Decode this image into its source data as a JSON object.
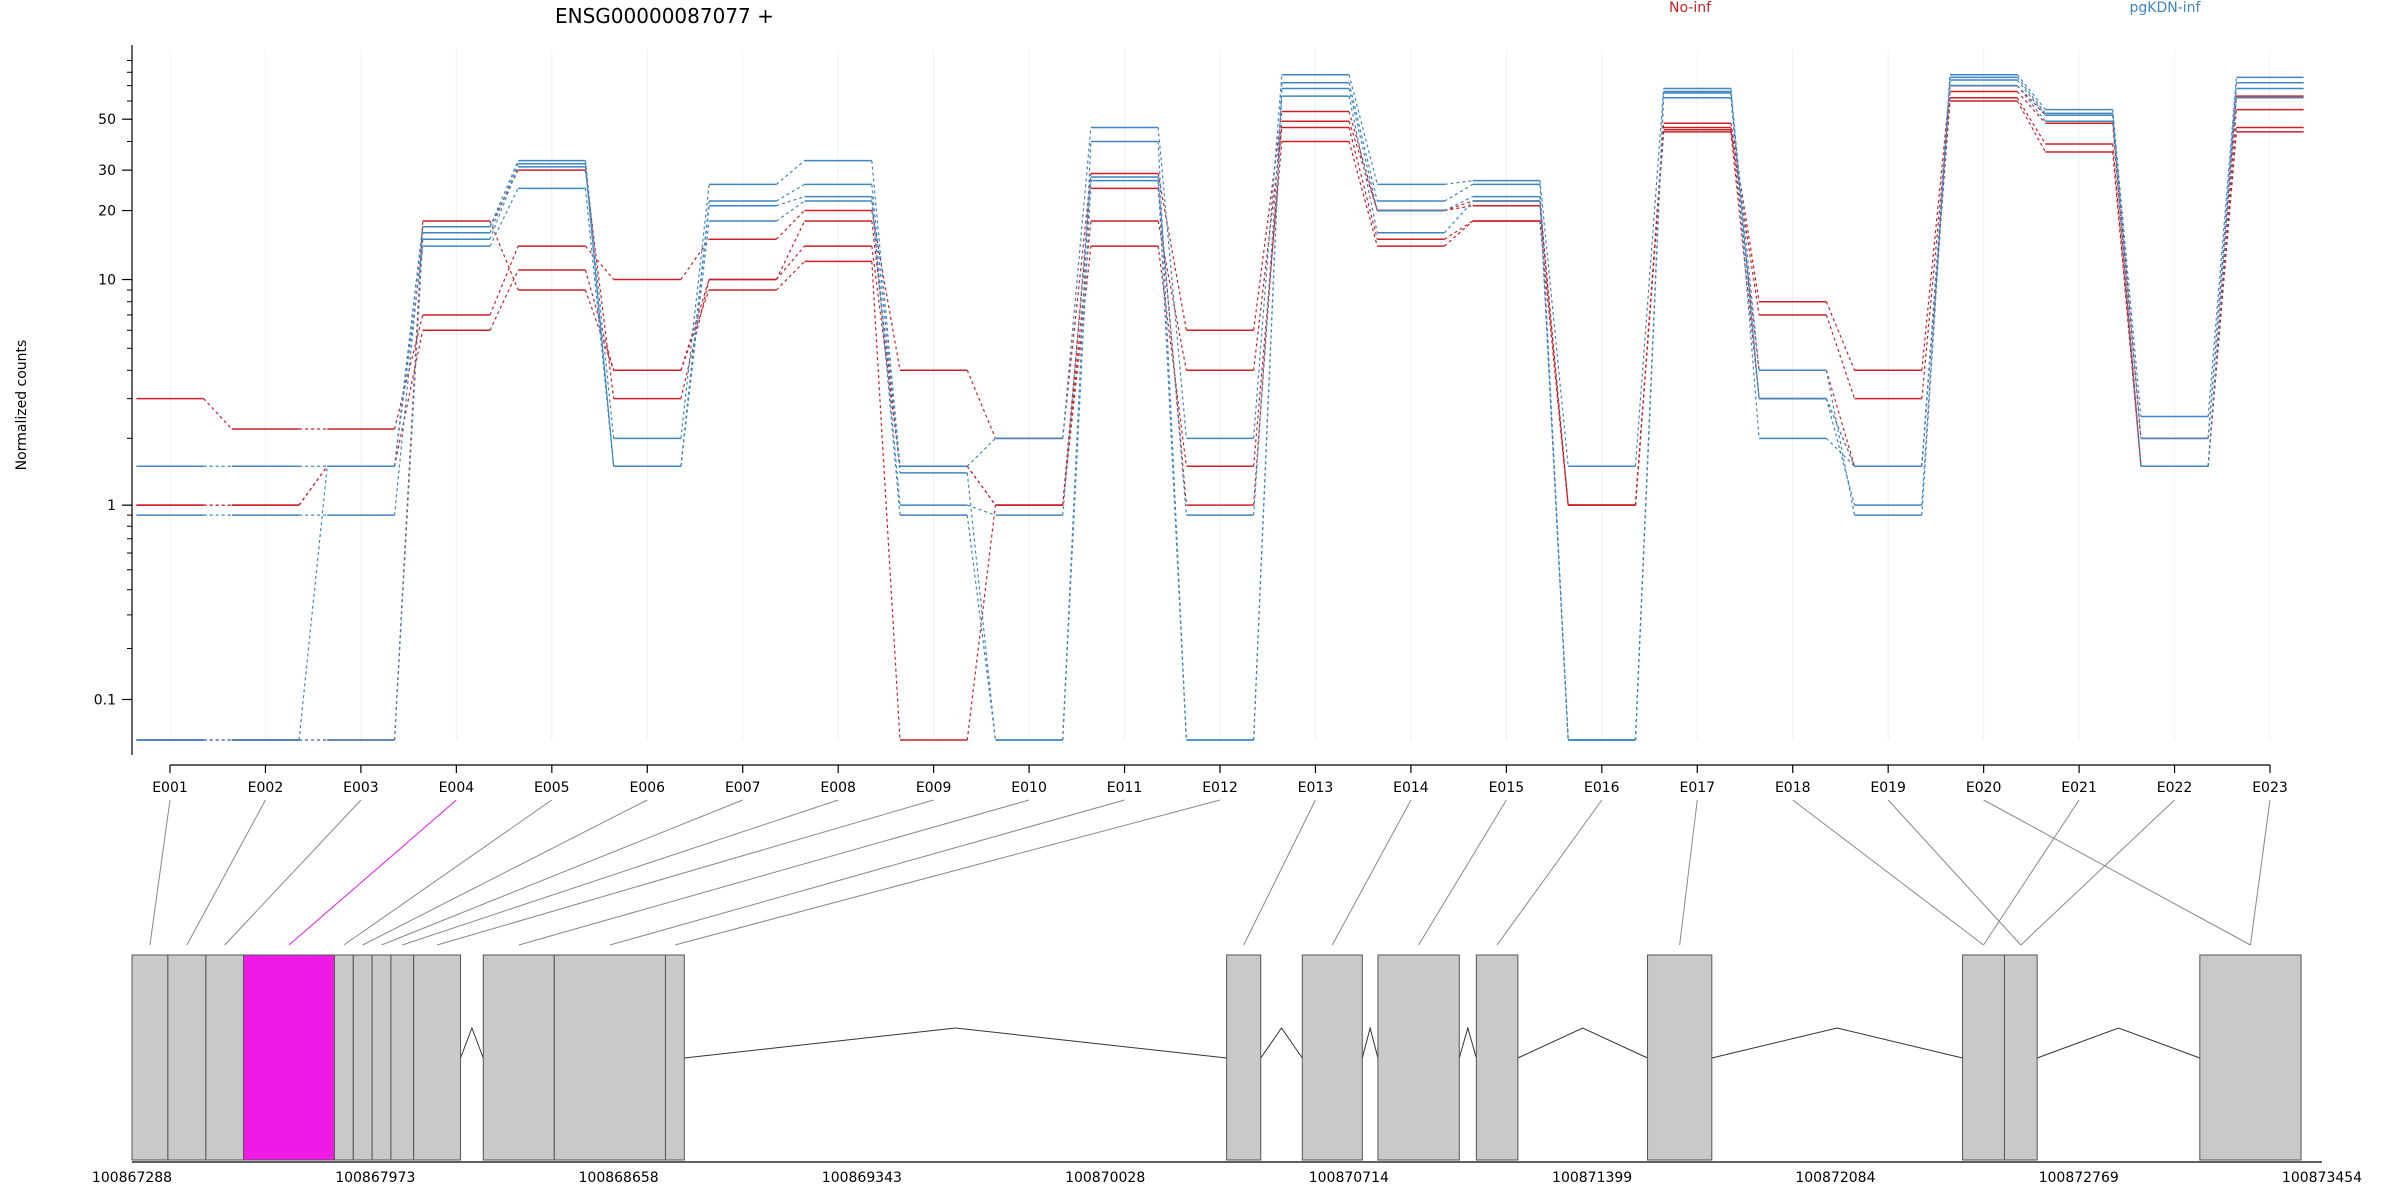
{
  "chart_data": {
    "type": "line",
    "title": "ENSG00000087077 +",
    "ylabel": "Normalized counts",
    "y_scale": "log-like (pseudo-log)",
    "y_ticks": [
      0.1,
      1,
      10,
      20,
      30,
      50
    ],
    "y_tick_labels": [
      "0.1",
      "1",
      "10",
      "20",
      "30",
      "50"
    ],
    "categories": [
      "E001",
      "E002",
      "E003",
      "E004",
      "E005",
      "E006",
      "E007",
      "E008",
      "E009",
      "E010",
      "E011",
      "E012",
      "E013",
      "E014",
      "E015",
      "E016",
      "E017",
      "E018",
      "E019",
      "E020",
      "E021",
      "E022",
      "E023"
    ],
    "legend": [
      {
        "name": "No-inf",
        "color": "#cb2027",
        "position": "top-center"
      },
      {
        "name": "pgKDN-inf",
        "color": "#3f86c0",
        "position": "top-right"
      }
    ],
    "series": [
      {
        "group": "No-inf",
        "color": "#cb2027",
        "values": [
          3.0,
          2.2,
          2.2,
          7.0,
          14,
          10,
          15,
          20,
          4.0,
          2.0,
          29,
          6.0,
          54,
          20,
          22,
          1.0,
          48,
          8.0,
          4.0,
          70,
          52,
          2.0,
          63
        ]
      },
      {
        "group": "No-inf",
        "color": "#cb2027",
        "values": [
          1.0,
          1.0,
          1.5,
          6.0,
          11,
          4.0,
          10,
          14,
          1.5,
          1.0,
          18,
          4.0,
          46,
          15,
          18,
          1.0,
          45,
          7.0,
          3.0,
          62,
          39,
          1.5,
          55
        ]
      },
      {
        "group": "No-inf",
        "color": "#cb2027",
        "values": [
          0.05,
          0.05,
          0.05,
          18,
          9,
          4.0,
          9,
          12,
          0.05,
          1.0,
          14,
          1.5,
          40,
          14,
          18,
          1.0,
          44,
          3.0,
          1.5,
          60,
          36,
          1.5,
          46
        ]
      },
      {
        "group": "No-inf",
        "color": "#cb2027",
        "values": [
          1.0,
          1.0,
          1.5,
          17,
          30,
          3.0,
          10,
          18,
          1.5,
          1.0,
          25,
          1.0,
          49,
          20,
          21,
          1.0,
          46,
          4.0,
          1.5,
          66,
          48,
          1.5,
          44
        ]
      },
      {
        "group": "pgKDN-inf",
        "color": "#3f86c0",
        "values": [
          1.5,
          1.5,
          1.5,
          17,
          33,
          2.0,
          26,
          33,
          1.5,
          2.0,
          46,
          2.0,
          78,
          26,
          27,
          1.5,
          68,
          3.0,
          1.0,
          78,
          55,
          2.5,
          76
        ]
      },
      {
        "group": "pgKDN-inf",
        "color": "#3f86c0",
        "values": [
          0.9,
          0.9,
          0.9,
          16,
          32,
          1.5,
          22,
          26,
          1.4,
          0.05,
          40,
          0.05,
          72,
          22,
          26,
          0.05,
          65,
          4.0,
          0.9,
          76,
          53,
          2.0,
          72
        ]
      },
      {
        "group": "pgKDN-inf",
        "color": "#3f86c0",
        "values": [
          0.05,
          0.05,
          0.05,
          15,
          31,
          1.5,
          21,
          23,
          1.0,
          0.9,
          28,
          0.05,
          68,
          20,
          23,
          0.05,
          66,
          2.0,
          1.5,
          74,
          52,
          1.5,
          68
        ]
      },
      {
        "group": "pgKDN-inf",
        "color": "#3f86c0",
        "values": [
          0.05,
          0.05,
          1.5,
          14,
          25,
          1.5,
          18,
          22,
          0.9,
          0.05,
          27,
          0.9,
          63,
          16,
          22,
          0.05,
          62,
          3.0,
          1.5,
          70,
          49,
          1.5,
          62
        ]
      }
    ],
    "gene_axis_ticks": [
      "100867288",
      "100867973",
      "100868658",
      "100869343",
      "100870028",
      "100870714",
      "100871399",
      "100872084",
      "100872769",
      "100873454"
    ],
    "gene_axis_range": [
      100867288,
      100873454
    ],
    "exons": [
      {
        "id": "E001",
        "start": 100867288,
        "end": 100867389
      },
      {
        "id": "E002",
        "start": 100867389,
        "end": 100867496
      },
      {
        "id": "E003",
        "start": 100867496,
        "end": 100867602
      },
      {
        "id": "E004",
        "start": 100867602,
        "end": 100867858,
        "highlighted": true,
        "highlight_color": "#f01ae6"
      },
      {
        "id": "E005",
        "start": 100867858,
        "end": 100867911
      },
      {
        "id": "E006",
        "start": 100867911,
        "end": 100867964
      },
      {
        "id": "E007",
        "start": 100867964,
        "end": 100868017
      },
      {
        "id": "E008",
        "start": 100868017,
        "end": 100868081
      },
      {
        "id": "E009",
        "start": 100868081,
        "end": 100868213
      },
      {
        "id": "E010",
        "start": 100868277,
        "end": 100868477
      },
      {
        "id": "E011",
        "start": 100868477,
        "end": 100868790
      },
      {
        "id": "E012",
        "start": 100868790,
        "end": 100868843
      },
      {
        "id": "E013",
        "start": 100870370,
        "end": 100870466
      },
      {
        "id": "E014",
        "start": 100870583,
        "end": 100870752
      },
      {
        "id": "E015",
        "start": 100870796,
        "end": 100871025
      },
      {
        "id": "E016",
        "start": 100871073,
        "end": 100871190
      },
      {
        "id": "E017",
        "start": 100871555,
        "end": 100871736
      },
      {
        "id": "E018",
        "start": 100872442,
        "end": 100872560
      },
      {
        "id": "E019",
        "start": 100872560,
        "end": 100872652
      },
      {
        "id": "E020",
        "start": 100873110,
        "end": 100873395
      },
      {
        "id": "E021",
        "start": 100872442,
        "end": 100872560
      },
      {
        "id": "E022",
        "start": 100872560,
        "end": 100872652
      },
      {
        "id": "E023",
        "start": 100873110,
        "end": 100873395
      }
    ]
  }
}
